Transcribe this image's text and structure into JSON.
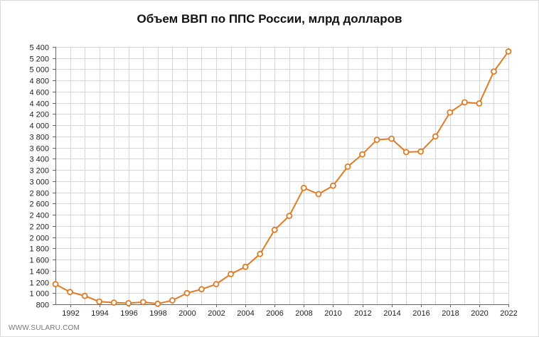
{
  "chart_data": {
    "type": "line",
    "title": "Объем ВВП по ППС России, млрд долларов",
    "xlabel": "",
    "ylabel": "",
    "x": [
      1991,
      1992,
      1993,
      1994,
      1995,
      1996,
      1997,
      1998,
      1999,
      2000,
      2001,
      2002,
      2003,
      2004,
      2005,
      2006,
      2007,
      2008,
      2009,
      2010,
      2011,
      2012,
      2013,
      2014,
      2015,
      2016,
      2017,
      2018,
      2019,
      2020,
      2021,
      2022
    ],
    "values": [
      1160,
      1020,
      950,
      850,
      830,
      820,
      840,
      810,
      870,
      1000,
      1070,
      1160,
      1340,
      1470,
      1700,
      2130,
      2380,
      2880,
      2770,
      2920,
      3260,
      3480,
      3740,
      3760,
      3520,
      3530,
      3800,
      4230,
      4410,
      4390,
      4960,
      5320
    ],
    "xlim": [
      1991,
      2022
    ],
    "ylim": [
      800,
      5400
    ],
    "x_tick_labels": [
      "1992",
      "1994",
      "1996",
      "1998",
      "2000",
      "2002",
      "2004",
      "2006",
      "2008",
      "2010",
      "2012",
      "2014",
      "2016",
      "2018",
      "2020",
      "2022"
    ],
    "y_tick_labels": [
      "800",
      "1 000",
      "1 200",
      "1 400",
      "1 600",
      "1 800",
      "2 000",
      "2 200",
      "2 400",
      "2 600",
      "2 800",
      "3 000",
      "3 200",
      "3 400",
      "3 600",
      "3 800",
      "4 000",
      "4 200",
      "4 400",
      "4 600",
      "4 800",
      "5 000",
      "5 200",
      "5 400"
    ],
    "grid": true,
    "colors": {
      "line": "#e07b24",
      "marker_fill": "#ffffff",
      "grid": "#d6d6d6",
      "axis": "#666666"
    }
  },
  "watermark": "WWW.SULARU.COM"
}
